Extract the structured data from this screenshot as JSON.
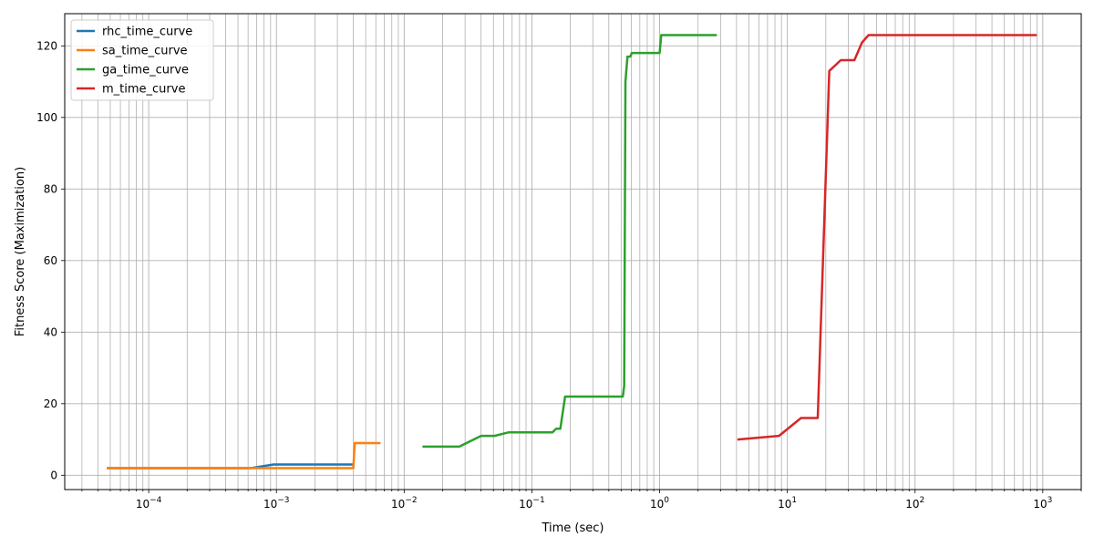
{
  "chart_data": {
    "type": "line",
    "title": "",
    "xlabel": "Time (sec)",
    "ylabel": "Fitness Score (Maximization)",
    "xscale": "log",
    "xlim": [
      2.2e-05,
      2000
    ],
    "ylim": [
      -4,
      129
    ],
    "yticks": [
      0,
      20,
      40,
      60,
      80,
      100,
      120
    ],
    "xticks": [
      0.0001,
      0.001,
      0.01,
      0.1,
      1,
      10,
      100,
      1000
    ],
    "xtick_labels": [
      {
        "base": "10",
        "exp": "−4"
      },
      {
        "base": "10",
        "exp": "−3"
      },
      {
        "base": "10",
        "exp": "−2"
      },
      {
        "base": "10",
        "exp": "−1"
      },
      {
        "base": "10",
        "exp": "0"
      },
      {
        "base": "10",
        "exp": "1"
      },
      {
        "base": "10",
        "exp": "2"
      },
      {
        "base": "10",
        "exp": "3"
      }
    ],
    "grid": "major and minor",
    "legend_position": "top-left",
    "series": [
      {
        "name": "rhc_time_curve",
        "color": "#1f77b4",
        "points": [
          [
            4.8e-05,
            2
          ],
          [
            0.00063,
            2
          ],
          [
            0.00095,
            3
          ],
          [
            0.0039,
            3
          ]
        ]
      },
      {
        "name": "sa_time_curve",
        "color": "#ff7f0e",
        "points": [
          [
            4.8e-05,
            2
          ],
          [
            0.004,
            2
          ],
          [
            0.0041,
            9
          ],
          [
            0.0064,
            9
          ]
        ]
      },
      {
        "name": "ga_time_curve",
        "color": "#2ca02c",
        "points": [
          [
            0.0142,
            8
          ],
          [
            0.027,
            8
          ],
          [
            0.04,
            11
          ],
          [
            0.051,
            11
          ],
          [
            0.066,
            12
          ],
          [
            0.145,
            12
          ],
          [
            0.155,
            13
          ],
          [
            0.167,
            13
          ],
          [
            0.182,
            22
          ],
          [
            0.515,
            22
          ],
          [
            0.528,
            25
          ],
          [
            0.54,
            110
          ],
          [
            0.56,
            117
          ],
          [
            0.59,
            117
          ],
          [
            0.605,
            118
          ],
          [
            1.0,
            118
          ],
          [
            1.03,
            123
          ],
          [
            2.75,
            123
          ]
        ]
      },
      {
        "name": "m_time_curve",
        "color": "#d62728",
        "points": [
          [
            4.15,
            10
          ],
          [
            8.6,
            11
          ],
          [
            12.8,
            16
          ],
          [
            17.3,
            16
          ],
          [
            21.3,
            113
          ],
          [
            26.2,
            116
          ],
          [
            33.5,
            116
          ],
          [
            38.5,
            121
          ],
          [
            43.2,
            123
          ],
          [
            880,
            123
          ]
        ]
      }
    ]
  }
}
